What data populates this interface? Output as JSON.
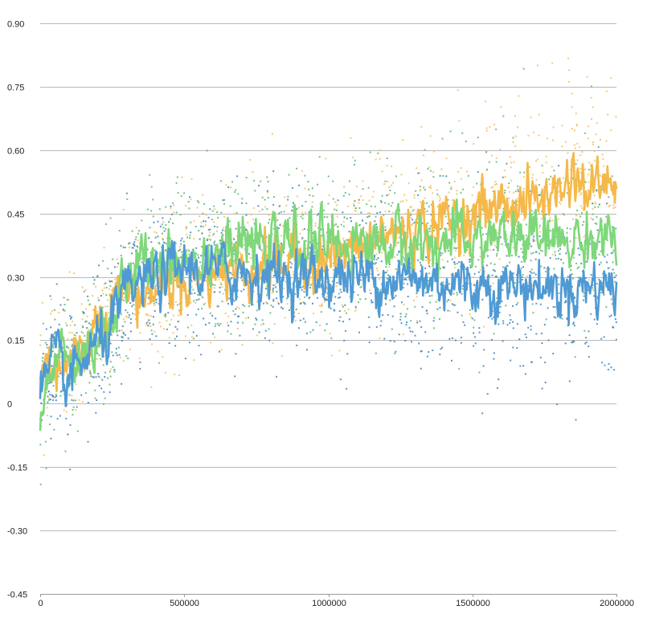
{
  "chart_data": {
    "type": "scatter",
    "title": "",
    "xlabel": "",
    "ylabel": "",
    "xlim": [
      0,
      2000000
    ],
    "ylim": [
      -0.45,
      0.9
    ],
    "x_ticks": [
      0,
      500000,
      1000000,
      1500000,
      2000000
    ],
    "x_tick_labels": [
      "0",
      "500000",
      "1000000",
      "1500000",
      "2000000"
    ],
    "y_ticks": [
      0.9,
      0.75,
      0.6,
      0.45,
      0.3,
      0.15,
      0,
      -0.15,
      -0.3,
      -0.45
    ],
    "y_tick_labels": [
      "0.90",
      "0.75",
      "0.60",
      "0.45",
      "0.30",
      "0.15",
      "0",
      "-0.15",
      "-0.30",
      "-0.45"
    ],
    "grid": "horizontal",
    "legend": "none",
    "series": [
      {
        "color": "#f5b94a",
        "scatter_color": "#f5c060",
        "x": [
          0,
          50000,
          100000,
          150000,
          200000,
          250000,
          300000,
          350000,
          400000,
          450000,
          500000,
          600000,
          700000,
          800000,
          900000,
          1000000,
          1100000,
          1200000,
          1300000,
          1400000,
          1500000,
          1600000,
          1700000,
          1800000,
          1850000,
          1900000,
          1950000,
          2000000
        ],
        "values": [
          0.08,
          0.1,
          0.09,
          0.13,
          0.2,
          0.25,
          0.27,
          0.26,
          0.27,
          0.29,
          0.3,
          0.31,
          0.32,
          0.33,
          0.34,
          0.35,
          0.36,
          0.4,
          0.41,
          0.43,
          0.45,
          0.47,
          0.48,
          0.5,
          0.55,
          0.5,
          0.52,
          0.53
        ]
      },
      {
        "color": "#7ed87a",
        "scatter_color": "#5cb870",
        "x": [
          0,
          50000,
          100000,
          150000,
          200000,
          250000,
          300000,
          350000,
          400000,
          450000,
          500000,
          600000,
          700000,
          800000,
          900000,
          1000000,
          1100000,
          1200000,
          1300000,
          1400000,
          1500000,
          1600000,
          1700000,
          1800000,
          1900000,
          2000000
        ],
        "values": [
          -0.04,
          0.12,
          0.09,
          0.12,
          0.16,
          0.2,
          0.28,
          0.33,
          0.34,
          0.35,
          0.35,
          0.36,
          0.37,
          0.37,
          0.38,
          0.38,
          0.38,
          0.38,
          0.38,
          0.38,
          0.39,
          0.39,
          0.39,
          0.38,
          0.39,
          0.4
        ]
      },
      {
        "color": "#4f9ad4",
        "scatter_color": "#3f84be",
        "x": [
          0,
          50000,
          100000,
          150000,
          200000,
          250000,
          300000,
          350000,
          400000,
          450000,
          500000,
          600000,
          700000,
          800000,
          900000,
          1000000,
          1100000,
          1200000,
          1300000,
          1400000,
          1500000,
          1600000,
          1700000,
          1800000,
          1900000,
          2000000
        ],
        "values": [
          0.02,
          0.1,
          0.05,
          0.1,
          0.14,
          0.18,
          0.26,
          0.28,
          0.3,
          0.31,
          0.32,
          0.31,
          0.31,
          0.31,
          0.3,
          0.3,
          0.3,
          0.3,
          0.29,
          0.29,
          0.28,
          0.28,
          0.28,
          0.27,
          0.28,
          0.28
        ]
      }
    ]
  }
}
